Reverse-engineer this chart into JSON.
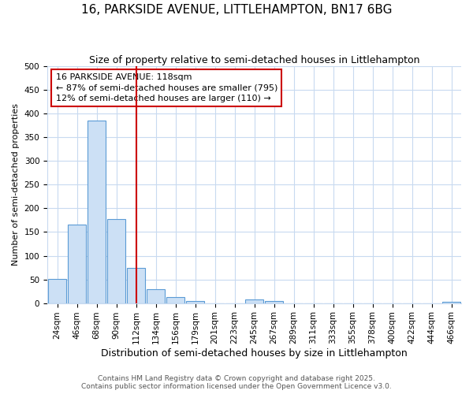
{
  "title": "16, PARKSIDE AVENUE, LITTLEHAMPTON, BN17 6BG",
  "subtitle": "Size of property relative to semi-detached houses in Littlehampton",
  "xlabel": "Distribution of semi-detached houses by size in Littlehampton",
  "ylabel": "Number of semi-detached properties",
  "categories": [
    "24sqm",
    "46sqm",
    "68sqm",
    "90sqm",
    "112sqm",
    "134sqm",
    "156sqm",
    "179sqm",
    "201sqm",
    "223sqm",
    "245sqm",
    "267sqm",
    "289sqm",
    "311sqm",
    "333sqm",
    "355sqm",
    "378sqm",
    "400sqm",
    "422sqm",
    "444sqm",
    "466sqm"
  ],
  "values": [
    51,
    165,
    385,
    178,
    75,
    30,
    13,
    5,
    0,
    0,
    8,
    5,
    0,
    0,
    0,
    0,
    0,
    0,
    0,
    0,
    3
  ],
  "bar_color": "#cce0f5",
  "bar_edge_color": "#5b9bd5",
  "vline_x": 4.0,
  "vline_color": "#cc0000",
  "annotation_text": "16 PARKSIDE AVENUE: 118sqm\n← 87% of semi-detached houses are smaller (795)\n12% of semi-detached houses are larger (110) →",
  "annotation_box_color": "#ffffff",
  "annotation_box_edge_color": "#cc0000",
  "footer": "Contains HM Land Registry data © Crown copyright and database right 2025.\nContains public sector information licensed under the Open Government Licence v3.0.",
  "background_color": "#ffffff",
  "ylim": [
    0,
    500
  ],
  "title_fontsize": 11,
  "subtitle_fontsize": 9,
  "xlabel_fontsize": 9,
  "ylabel_fontsize": 8,
  "footer_fontsize": 6.5,
  "tick_fontsize": 7.5,
  "annotation_fontsize": 8
}
